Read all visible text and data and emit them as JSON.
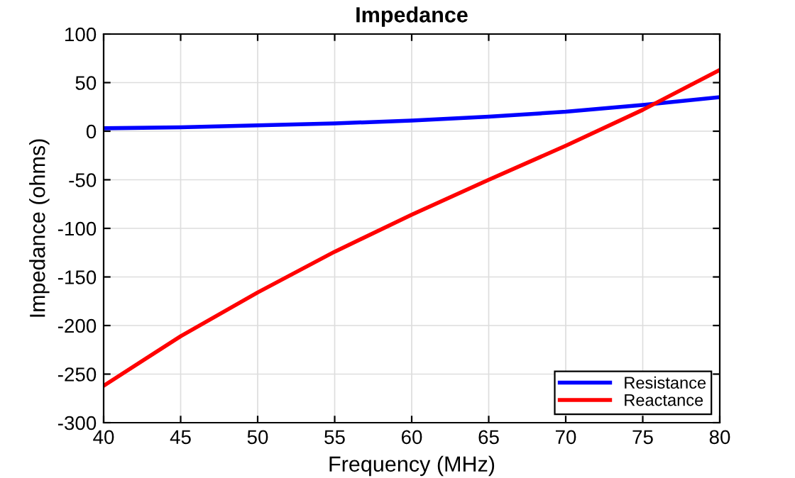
{
  "chart_data": {
    "type": "line",
    "title": "Impedance",
    "xlabel": "Frequency (MHz)",
    "ylabel": "Impedance (ohms)",
    "x": [
      40,
      45,
      50,
      55,
      60,
      65,
      70,
      75,
      80
    ],
    "series": [
      {
        "name": "Resistance",
        "color": "#0000ff",
        "values": [
          3,
          4,
          6,
          8,
          11,
          15,
          20,
          27,
          35
        ]
      },
      {
        "name": "Reactance",
        "color": "#ff0000",
        "values": [
          -262,
          -211,
          -166,
          -124,
          -86,
          -50,
          -15,
          22,
          63
        ]
      }
    ],
    "xlim": [
      40,
      80
    ],
    "xticks": [
      40,
      45,
      50,
      55,
      60,
      65,
      70,
      75,
      80
    ],
    "ylim": [
      -300,
      100
    ],
    "yticks": [
      -300,
      -250,
      -200,
      -150,
      -100,
      -50,
      0,
      50,
      100
    ],
    "grid": true,
    "legend": "bottom right",
    "line_style": "solid",
    "marker": "none"
  }
}
